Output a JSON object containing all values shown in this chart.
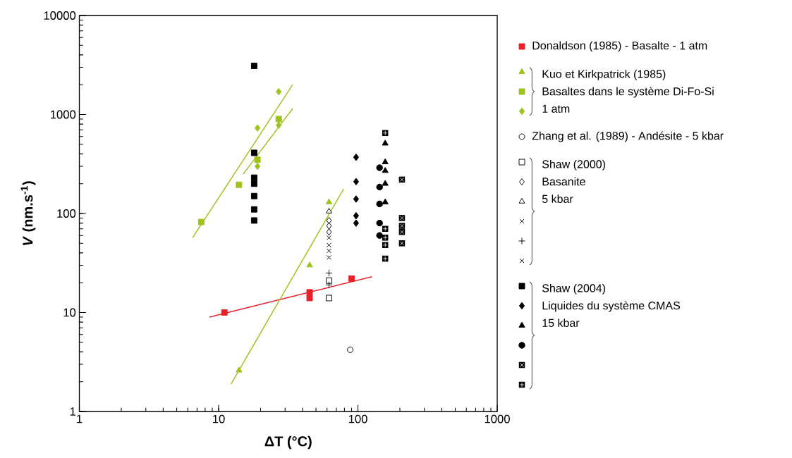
{
  "chart_data": {
    "type": "scatter",
    "xlabel": "ΔT (°C)",
    "ylabel": "*V* (nm.s$^{-1}$)",
    "log": "xy",
    "xlim": [
      1,
      1000
    ],
    "ylim": [
      1,
      10000
    ],
    "xticks": [
      1,
      10,
      100,
      1000
    ],
    "yticks": [
      1,
      10,
      100,
      1000,
      10000
    ],
    "legend": "right",
    "series": [
      {
        "name": "Donaldson (1985) - Basalte - 1 atm",
        "color": "#e8202a",
        "marker": "square",
        "x": [
          11,
          45,
          45,
          90
        ],
        "values": [
          10,
          16,
          14,
          22
        ]
      },
      {
        "type": "line",
        "color": "#e8202a",
        "marker": "none",
        "x": [
          8.6,
          126
        ],
        "values": [
          9.0,
          23
        ]
      },
      {
        "name": "Kuo et Kirkpatrick (1985)\nBasaltes dans le système Di-Fo-Si\n1 atm",
        "color": "#9dc31e",
        "marker": "triangle",
        "x": [
          14,
          45,
          62
        ],
        "values": [
          2.6,
          30,
          130
        ]
      },
      {
        "color": "#9dc31e",
        "marker": "square",
        "x": [
          7.5,
          14,
          19,
          27
        ],
        "values": [
          82,
          195,
          350,
          900
        ]
      },
      {
        "color": "#9dc31e",
        "marker": "diamond",
        "x": [
          19,
          19,
          27,
          27
        ],
        "values": [
          730,
          300,
          1700,
          780
        ]
      },
      {
        "type": "line",
        "color": "#9dc31e",
        "marker": "none",
        "x": [
          12.3,
          79
        ],
        "values": [
          1.9,
          177
        ]
      },
      {
        "type": "line",
        "color": "#9dc31e",
        "marker": "none",
        "x": [
          6.5,
          34
        ],
        "values": [
          57,
          2000
        ]
      },
      {
        "type": "line",
        "color": "#9dc31e",
        "marker": "none",
        "x": [
          15,
          34
        ],
        "values": [
          250,
          1150
        ]
      },
      {
        "name": "Zhang et al. (1989) - Andésite - 5 kbar",
        "color": "#000000",
        "marker": "circle-open",
        "x": [
          88
        ],
        "values": [
          4.2
        ]
      },
      {
        "name": "Shaw (2000)\nBasanite\n5 kbar",
        "color": "#000000",
        "marker": "square-open",
        "x": [
          62,
          62
        ],
        "values": [
          21,
          14
        ]
      },
      {
        "color": "#000000",
        "marker": "diamond-open",
        "x": [
          62,
          62,
          62
        ],
        "values": [
          85,
          75,
          65
        ]
      },
      {
        "color": "#000000",
        "marker": "triangle-open",
        "x": [
          62
        ],
        "values": [
          105
        ]
      },
      {
        "color": "#000000",
        "marker": "cross",
        "x": [
          62,
          62,
          62
        ],
        "values": [
          57,
          48,
          36
        ]
      },
      {
        "color": "#000000",
        "marker": "plus",
        "x": [
          62,
          62
        ],
        "values": [
          25,
          19
        ]
      },
      {
        "color": "#000000",
        "marker": "cross",
        "x": [
          62
        ],
        "values": [
          42
        ]
      },
      {
        "name": "Shaw (2004)\nLiquides du système CMAS\n15 kbar",
        "color": "#000000",
        "marker": "square",
        "x": [
          18,
          18,
          18,
          18,
          18,
          18,
          18
        ],
        "values": [
          3100,
          410,
          230,
          200,
          150,
          110,
          85
        ]
      },
      {
        "color": "#000000",
        "marker": "diamond",
        "x": [
          97,
          97,
          97,
          97,
          97
        ],
        "values": [
          370,
          210,
          140,
          95,
          80
        ]
      },
      {
        "color": "#000000",
        "marker": "triangle",
        "x": [
          157,
          157,
          157,
          157,
          157
        ],
        "values": [
          510,
          330,
          270,
          200,
          130
        ]
      },
      {
        "color": "#000000",
        "marker": "circle",
        "x": [
          143,
          143,
          143,
          143,
          143
        ],
        "values": [
          290,
          185,
          125,
          80,
          60
        ]
      },
      {
        "color": "#000000",
        "marker": "square-cross",
        "x": [
          207,
          207,
          207,
          207,
          207
        ],
        "values": [
          220,
          90,
          75,
          65,
          50
        ]
      },
      {
        "color": "#000000",
        "marker": "square-plus",
        "x": [
          157,
          157,
          157,
          157,
          157
        ],
        "values": [
          650,
          70,
          57,
          48,
          35
        ]
      }
    ]
  }
}
